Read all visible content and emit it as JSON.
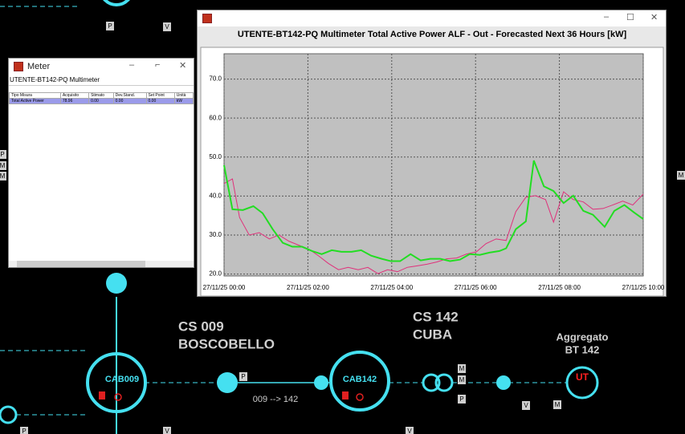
{
  "diagram": {
    "stations": [
      {
        "code": "CS 009",
        "name": "BOSCOBELLO"
      },
      {
        "code": "CS 142",
        "name": "CUBA"
      }
    ],
    "nodes": {
      "cab009": "CAB009",
      "cab142": "CAB142",
      "ut": "UT"
    },
    "aggregate": {
      "line1": "Aggregato",
      "line2": "BT 142"
    },
    "link_label": "009 --> 142",
    "tags": [
      "P",
      "V",
      "P",
      "M",
      "M",
      "P",
      "M",
      "V",
      "M",
      "M",
      "P",
      "M",
      "P",
      "V",
      "V"
    ]
  },
  "meter_window": {
    "title": "Meter",
    "subtitle": "UTENTE-BT142-PQ Multimeter",
    "table": {
      "headers": [
        "Tipo Misura",
        "Acquisito",
        "Stimato",
        "Dev.Stand.",
        "Set Point",
        "Unità"
      ],
      "rows": [
        [
          "Total Active Power",
          "78.96",
          "0.00",
          "0.00",
          "0.00",
          "kW"
        ]
      ]
    }
  },
  "chart_window": {
    "chart_data": {
      "type": "line",
      "title": "UTENTE-BT142-PQ Multimeter Total Active Power ALF - Out - Forecasted Next 36 Hours [kW]",
      "xlim": [
        0,
        10
      ],
      "xticks": [
        {
          "value": 0,
          "label": "27/11/25 00:00"
        },
        {
          "value": 2,
          "label": "27/11/25 02:00"
        },
        {
          "value": 4,
          "label": "27/11/25 04:00"
        },
        {
          "value": 6,
          "label": "27/11/25 06:00"
        },
        {
          "value": 8,
          "label": "27/11/25 08:00"
        },
        {
          "value": 10,
          "label": "27/11/25 10:00"
        }
      ],
      "ylim": [
        19.5,
        76.5
      ],
      "yticks": [
        {
          "value": 20,
          "label": "20.0"
        },
        {
          "value": 30,
          "label": "30.0"
        },
        {
          "value": 40,
          "label": "40.0"
        },
        {
          "value": 50,
          "label": "50.0"
        },
        {
          "value": 60,
          "label": "60.0"
        },
        {
          "value": 70,
          "label": "70.0"
        }
      ],
      "grid": true,
      "series": [
        {
          "color": "#e0307a",
          "x": [
            0,
            0.2,
            0.37,
            0.6,
            0.84,
            1.08,
            1.31,
            1.55,
            1.78,
            2.02,
            2.25,
            2.49,
            2.73,
            2.96,
            3.2,
            3.43,
            3.67,
            3.9,
            4.14,
            4.37,
            4.61,
            4.84,
            5.08,
            5.31,
            5.55,
            5.78,
            6.02,
            6.25,
            6.49,
            6.73,
            6.96,
            7.2,
            7.43,
            7.67,
            7.86,
            8.1,
            8.33,
            8.57,
            8.8,
            9.04,
            9.27,
            9.51,
            9.75,
            10
          ],
          "values": [
            43.2,
            44.4,
            34.5,
            30.0,
            30.6,
            29.0,
            30.0,
            28.4,
            27.4,
            26.4,
            24.7,
            22.7,
            21.1,
            21.7,
            21.1,
            21.7,
            20.1,
            21.1,
            20.6,
            21.7,
            22.1,
            22.5,
            23.1,
            23.9,
            24.1,
            25.1,
            25.7,
            27.8,
            29.0,
            28.6,
            36.0,
            39.7,
            40.1,
            39.1,
            33.3,
            41.1,
            39.1,
            38.5,
            36.6,
            36.8,
            37.7,
            38.7,
            37.7,
            40.5
          ]
        },
        {
          "color": "#22dd22",
          "x": [
            0,
            0.2,
            0.45,
            0.7,
            0.92,
            1.16,
            1.4,
            1.63,
            1.86,
            2.1,
            2.33,
            2.57,
            2.8,
            3.04,
            3.27,
            3.51,
            3.76,
            3.98,
            4.2,
            4.45,
            4.69,
            4.92,
            5.16,
            5.39,
            5.63,
            5.86,
            6.1,
            6.33,
            6.57,
            6.73,
            6.96,
            7.2,
            7.39,
            7.63,
            7.86,
            8.1,
            8.33,
            8.57,
            8.8,
            9.08,
            9.31,
            9.55,
            9.78,
            10
          ],
          "values": [
            47.9,
            36.6,
            36.4,
            37.4,
            35.6,
            31.5,
            28.0,
            27.0,
            27.0,
            25.9,
            25.1,
            26.1,
            25.7,
            25.7,
            26.1,
            24.7,
            23.9,
            23.3,
            23.3,
            25.1,
            23.5,
            23.9,
            23.9,
            23.3,
            23.7,
            25.1,
            24.9,
            25.5,
            25.9,
            26.6,
            31.5,
            33.5,
            49.1,
            42.5,
            41.3,
            38.2,
            40.1,
            36.2,
            35.2,
            32.1,
            36.2,
            37.7,
            35.8,
            34.1
          ]
        }
      ]
    }
  }
}
